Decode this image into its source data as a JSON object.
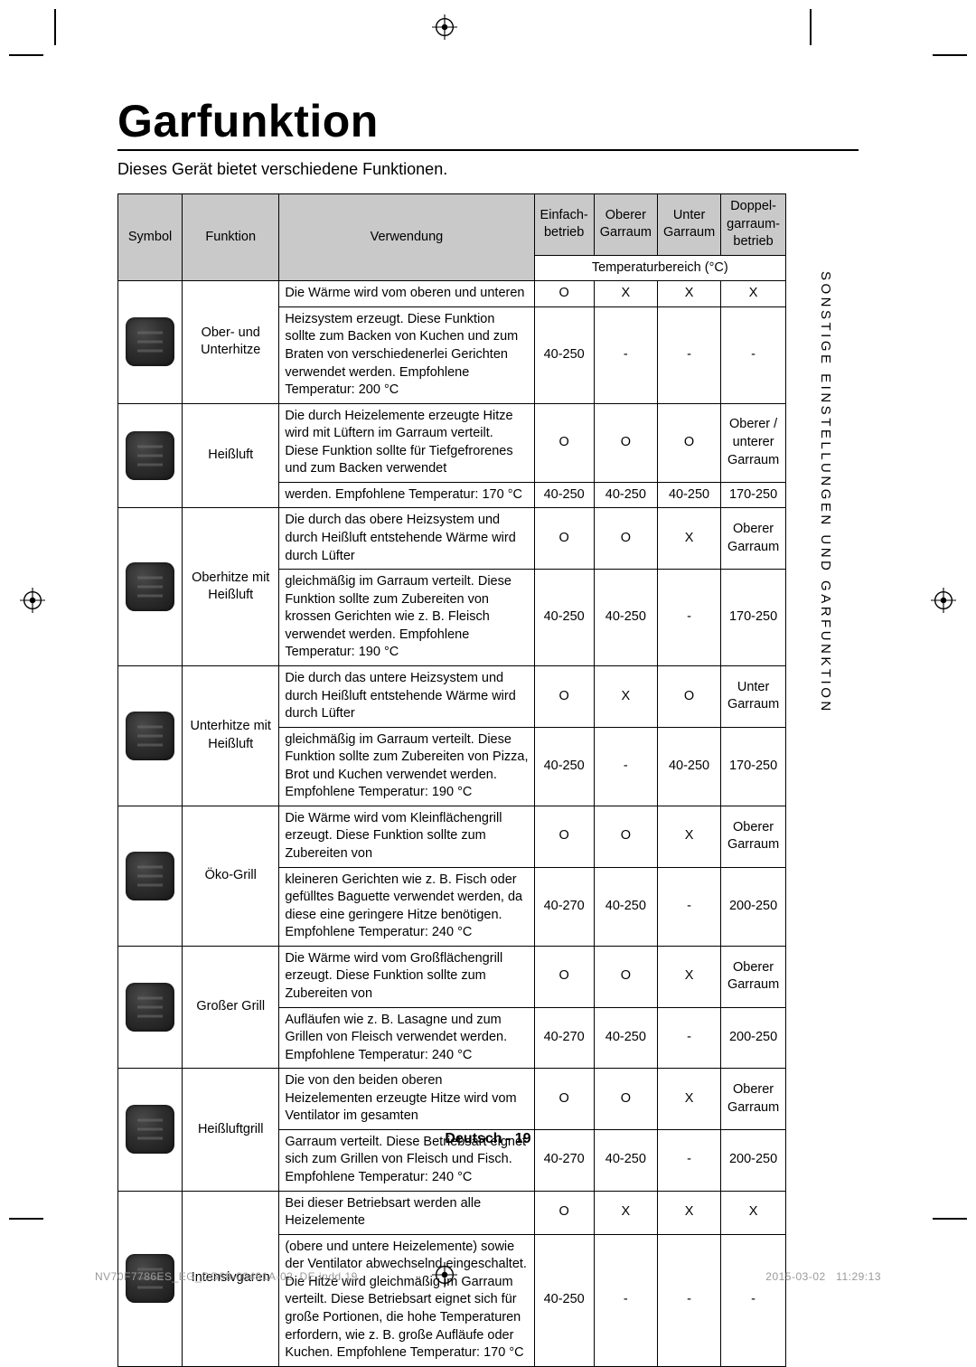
{
  "page": {
    "title": "Garfunktion",
    "subtitle": "Dieses Gerät bietet verschiedene Funktionen.",
    "side_label": "SONSTIGE EINSTELLUNGEN UND GARFUNKTION",
    "footer": "Deutsch - 19",
    "footprint_left": "NV70F7786ES_EG_DG68-00491A-02_DE.indd   19",
    "footprint_right": "2015-03-02     11:29:13"
  },
  "table": {
    "headers": {
      "symbol": "Symbol",
      "function": "Funktion",
      "usage": "Verwendung",
      "single": "Einfach-betrieb",
      "upper": "Oberer Garraum",
      "lower": "Unter Garraum",
      "dual": "Doppel-garraum-betrieb",
      "temp_range": "Temperaturbereich (°C)"
    },
    "rows": [
      {
        "fn": "Ober- und Unterhitze",
        "use_top": "Die Wärme wird vom oberen und unteren",
        "use_bot": "Heizsystem erzeugt. Diese Funktion sollte zum Backen von Kuchen und zum Braten von verschiedenerlei Gerichten verwendet werden. Empfohlene Temperatur: 200 °C",
        "r1": [
          "O",
          "X",
          "X",
          "X"
        ],
        "r2": [
          "40-250",
          "-",
          "-",
          "-"
        ]
      },
      {
        "fn": "Heißluft",
        "use_top": "Die durch Heizelemente erzeugte Hitze wird mit Lüftern im Garraum verteilt. Diese Funktion sollte für Tiefgefrorenes und zum Backen verwendet",
        "use_bot": "werden. Empfohlene Temperatur: 170 °C",
        "r1": [
          "O",
          "O",
          "O",
          "Oberer / unterer Garraum"
        ],
        "r2": [
          "40-250",
          "40-250",
          "40-250",
          "170-250"
        ]
      },
      {
        "fn": "Oberhitze mit Heißluft",
        "use_top": "Die durch das obere Heizsystem und durch Heißluft entstehende Wärme wird durch Lüfter",
        "use_bot": "gleichmäßig im Garraum verteilt. Diese Funktion sollte zum Zubereiten von krossen Gerichten wie z. B. Fleisch verwendet werden. Empfohlene Temperatur: 190 °C",
        "r1": [
          "O",
          "O",
          "X",
          "Oberer Garraum"
        ],
        "r2": [
          "40-250",
          "40-250",
          "-",
          "170-250"
        ]
      },
      {
        "fn": "Unterhitze mit Heißluft",
        "use_top": "Die durch das untere Heizsystem und durch Heißluft entstehende Wärme wird durch Lüfter",
        "use_bot": "gleichmäßig im Garraum verteilt. Diese Funktion sollte zum Zubereiten von Pizza, Brot und Kuchen verwendet werden. Empfohlene Temperatur: 190 °C",
        "r1": [
          "O",
          "X",
          "O",
          "Unter Garraum"
        ],
        "r2": [
          "40-250",
          "-",
          "40-250",
          "170-250"
        ]
      },
      {
        "fn": "Öko-Grill",
        "use_top": "Die Wärme wird vom Kleinflächengrill erzeugt. Diese Funktion sollte zum Zubereiten von",
        "use_bot": "kleineren Gerichten wie z. B. Fisch oder gefülltes Baguette verwendet werden, da diese eine geringere Hitze benötigen. Empfohlene Temperatur: 240 °C",
        "r1": [
          "O",
          "O",
          "X",
          "Oberer Garraum"
        ],
        "r2": [
          "40-270",
          "40-250",
          "-",
          "200-250"
        ]
      },
      {
        "fn": "Großer Grill",
        "use_top": "Die Wärme wird vom Großflächengrill erzeugt. Diese Funktion sollte zum Zubereiten von",
        "use_bot": "Aufläufen wie z. B. Lasagne und zum Grillen von Fleisch verwendet werden. Empfohlene Temperatur: 240 °C",
        "r1": [
          "O",
          "O",
          "X",
          "Oberer Garraum"
        ],
        "r2": [
          "40-270",
          "40-250",
          "-",
          "200-250"
        ]
      },
      {
        "fn": "Heißluftgrill",
        "use_top": "Die von den beiden oberen Heizelementen erzeugte Hitze wird vom Ventilator im gesamten",
        "use_bot": "Garraum verteilt. Diese Betriebsart eignet sich zum Grillen von Fleisch und Fisch. Empfohlene Temperatur: 240 °C",
        "r1": [
          "O",
          "O",
          "X",
          "Oberer Garraum"
        ],
        "r2": [
          "40-270",
          "40-250",
          "-",
          "200-250"
        ]
      },
      {
        "fn": "Intensivgaren",
        "use_top": "Bei dieser Betriebsart werden alle Heizelemente",
        "use_bot": "(obere und untere Heizelemente) sowie der Ventilator abwechselnd eingeschaltet. Die Hitze wird gleichmäßig im Garraum verteilt. Diese Betriebsart eignet sich für große Portionen, die hohe Temperaturen erfordern, wie z. B. große Aufläufe oder Kuchen. Empfohlene Temperatur: 170 °C",
        "r1": [
          "O",
          "X",
          "X",
          "X"
        ],
        "r2": [
          "40-250",
          "-",
          "-",
          "-"
        ]
      }
    ]
  }
}
